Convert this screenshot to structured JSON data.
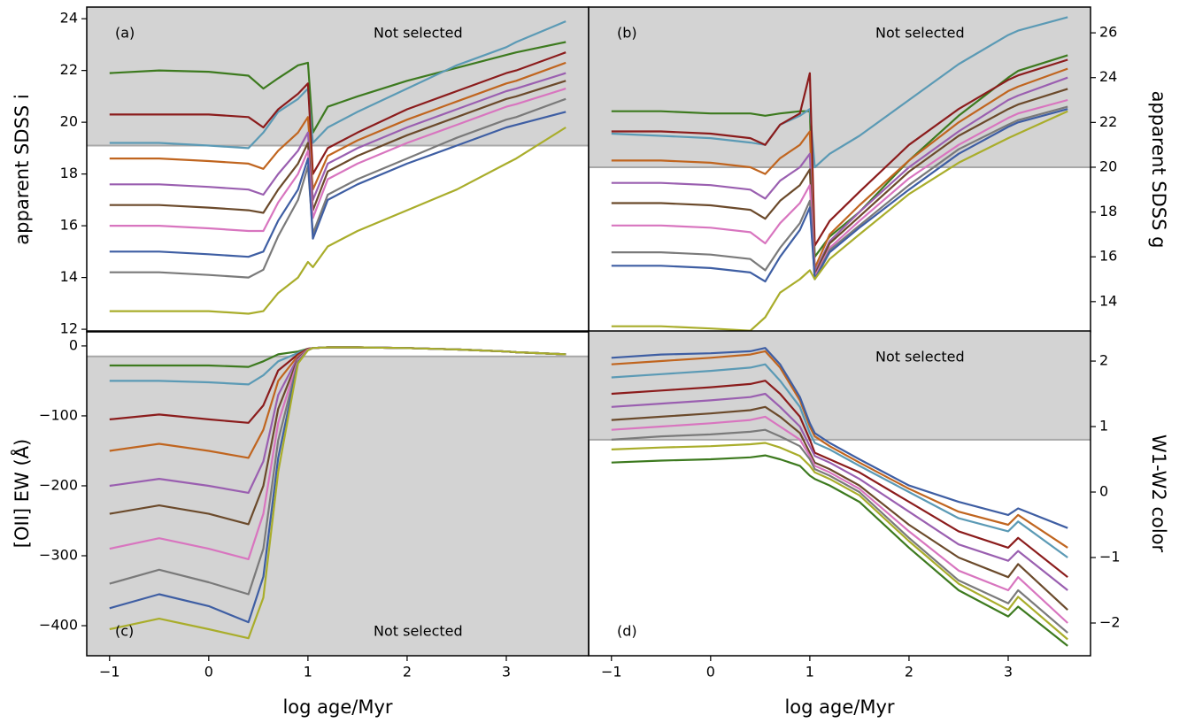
{
  "chart_data": [
    {
      "type": "line",
      "panel_label": "(a)",
      "label_corner": "upper left",
      "annotation": "Not selected",
      "ylabel": "apparent SDSS i",
      "yaxis_side": "left",
      "shade": {
        "threshold": 19.1,
        "side": "above",
        "color": "#d3d3d3"
      },
      "xlim": [
        -1.23,
        3.83
      ],
      "ylim": [
        11.9,
        24.45
      ],
      "yticks": [
        12,
        14,
        16,
        18,
        20,
        22,
        24
      ],
      "x": [
        -1,
        -0.5,
        0,
        0.4,
        0.55,
        0.7,
        0.9,
        1.0,
        1.05,
        1.2,
        1.5,
        2,
        2.5,
        3,
        3.1,
        3.6
      ],
      "series": [
        {
          "color": "#3d7a1f",
          "values": [
            21.9,
            22.0,
            21.95,
            21.8,
            21.3,
            21.7,
            22.2,
            22.3,
            19.6,
            20.6,
            21.0,
            21.6,
            22.1,
            22.6,
            22.7,
            23.1
          ]
        },
        {
          "color": "#5b9ab5",
          "values": [
            19.2,
            19.2,
            19.1,
            19.0,
            19.6,
            20.4,
            20.9,
            21.3,
            19.2,
            19.8,
            20.4,
            21.3,
            22.2,
            22.9,
            23.1,
            23.9
          ]
        },
        {
          "color": "#8b1c1c",
          "values": [
            20.3,
            20.3,
            20.3,
            20.2,
            19.8,
            20.5,
            21.1,
            21.5,
            18.0,
            19.0,
            19.6,
            20.5,
            21.2,
            21.9,
            22.0,
            22.7
          ]
        },
        {
          "color": "#c0651f",
          "values": [
            18.6,
            18.6,
            18.5,
            18.4,
            18.2,
            18.9,
            19.6,
            20.2,
            17.4,
            18.7,
            19.3,
            20.1,
            20.8,
            21.5,
            21.6,
            22.3
          ]
        },
        {
          "color": "#9a5fb0",
          "values": [
            17.6,
            17.6,
            17.5,
            17.4,
            17.2,
            18.0,
            18.9,
            19.6,
            17.0,
            18.4,
            19.0,
            19.8,
            20.5,
            21.2,
            21.3,
            21.9
          ]
        },
        {
          "color": "#6b4a2b",
          "values": [
            16.8,
            16.8,
            16.7,
            16.6,
            16.5,
            17.4,
            18.4,
            19.2,
            16.6,
            18.1,
            18.7,
            19.5,
            20.2,
            20.9,
            21.0,
            21.6
          ]
        },
        {
          "color": "#d875bf",
          "values": [
            16.0,
            16.0,
            15.9,
            15.8,
            15.8,
            16.9,
            18.0,
            18.9,
            16.3,
            17.8,
            18.4,
            19.2,
            19.9,
            20.6,
            20.7,
            21.3
          ]
        },
        {
          "color": "#7a7a7a",
          "values": [
            14.2,
            14.2,
            14.1,
            14.0,
            14.3,
            15.6,
            17.0,
            18.3,
            15.7,
            17.2,
            17.8,
            18.6,
            19.4,
            20.1,
            20.2,
            20.9
          ]
        },
        {
          "color": "#3e5ea3",
          "values": [
            15.0,
            15.0,
            14.9,
            14.8,
            15.0,
            16.2,
            17.4,
            18.6,
            15.5,
            17.0,
            17.6,
            18.4,
            19.1,
            19.8,
            19.9,
            20.4
          ]
        },
        {
          "color": "#a9ad2b",
          "values": [
            12.7,
            12.7,
            12.7,
            12.6,
            12.7,
            13.4,
            14.0,
            14.6,
            14.4,
            15.2,
            15.8,
            16.6,
            17.4,
            18.4,
            18.6,
            19.8
          ]
        }
      ]
    },
    {
      "type": "line",
      "panel_label": "(b)",
      "label_corner": "upper left",
      "annotation": "Not selected",
      "ylabel": "apparent SDSS g",
      "yaxis_side": "right",
      "shade": {
        "threshold": 20,
        "side": "above",
        "color": "#d3d3d3"
      },
      "xlim": [
        -1.23,
        3.83
      ],
      "ylim": [
        12.65,
        27.15
      ],
      "yticks": [
        14,
        16,
        18,
        20,
        22,
        24,
        26
      ],
      "x": [
        -1,
        -0.5,
        0,
        0.4,
        0.55,
        0.7,
        0.9,
        1.0,
        1.05,
        1.2,
        1.5,
        2,
        2.5,
        3,
        3.1,
        3.6
      ],
      "series": [
        {
          "color": "#3d7a1f",
          "values": [
            22.5,
            22.5,
            22.4,
            22.4,
            22.3,
            22.4,
            22.5,
            22.5,
            16.0,
            16.9,
            18.0,
            20.3,
            22.3,
            24.0,
            24.3,
            25.0
          ]
        },
        {
          "color": "#5b9ab5",
          "values": [
            21.5,
            21.4,
            21.3,
            21.1,
            21.0,
            21.9,
            22.3,
            22.6,
            20.0,
            20.6,
            21.4,
            23.0,
            24.6,
            25.9,
            26.1,
            26.7
          ]
        },
        {
          "color": "#8b1c1c",
          "values": [
            21.6,
            21.6,
            21.5,
            21.3,
            21.0,
            21.9,
            22.4,
            24.2,
            16.5,
            17.6,
            18.9,
            21.0,
            22.6,
            23.9,
            24.1,
            24.8
          ]
        },
        {
          "color": "#c0651f",
          "values": [
            20.3,
            20.3,
            20.2,
            20.0,
            19.7,
            20.4,
            21.0,
            21.6,
            15.5,
            17.0,
            18.3,
            20.3,
            22.0,
            23.4,
            23.6,
            24.4
          ]
        },
        {
          "color": "#9a5fb0",
          "values": [
            19.3,
            19.3,
            19.2,
            19.0,
            18.6,
            19.4,
            20.0,
            20.6,
            15.3,
            16.7,
            18.0,
            20.0,
            21.6,
            23.0,
            23.2,
            24.0
          ]
        },
        {
          "color": "#6b4a2b",
          "values": [
            18.4,
            18.4,
            18.3,
            18.1,
            17.7,
            18.5,
            19.2,
            19.9,
            15.2,
            16.6,
            17.8,
            19.8,
            21.4,
            22.6,
            22.8,
            23.5
          ]
        },
        {
          "color": "#d875bf",
          "values": [
            17.4,
            17.4,
            17.3,
            17.1,
            16.6,
            17.5,
            18.4,
            19.2,
            15.1,
            16.4,
            17.6,
            19.5,
            21.0,
            22.2,
            22.4,
            23.0
          ]
        },
        {
          "color": "#7a7a7a",
          "values": [
            16.2,
            16.2,
            16.1,
            15.9,
            15.4,
            16.4,
            17.5,
            18.5,
            15.0,
            16.3,
            17.4,
            19.2,
            20.8,
            21.9,
            22.1,
            22.7
          ]
        },
        {
          "color": "#3e5ea3",
          "values": [
            15.6,
            15.6,
            15.5,
            15.3,
            14.9,
            16.0,
            17.2,
            18.2,
            15.0,
            16.2,
            17.3,
            19.0,
            20.6,
            21.8,
            22.0,
            22.6
          ]
        },
        {
          "color": "#a9ad2b",
          "values": [
            12.9,
            12.9,
            12.8,
            12.7,
            13.3,
            14.4,
            15.0,
            15.4,
            15.0,
            15.9,
            17.0,
            18.8,
            20.2,
            21.3,
            21.5,
            22.5
          ]
        }
      ]
    },
    {
      "type": "line",
      "panel_label": "(c)",
      "label_corner": "lower left",
      "annotation": "Not selected",
      "ylabel": "[OII] EW (Å)",
      "yaxis_side": "left",
      "shade": {
        "threshold": -15,
        "side": "below",
        "color": "#d3d3d3"
      },
      "xlim": [
        -1.23,
        3.83
      ],
      "ylim": [
        -443,
        21.4
      ],
      "yticks": [
        {
          "value": -400,
          "label": "−400"
        },
        {
          "value": -300,
          "label": "−300"
        },
        {
          "value": -200,
          "label": "−200"
        },
        {
          "value": -100,
          "label": "−100"
        },
        0
      ],
      "xticks": [
        {
          "value": -1,
          "label": "−1"
        },
        0,
        1,
        2,
        3
      ],
      "xlabel": "log age/Myr",
      "x": [
        -1,
        -0.5,
        0,
        0.4,
        0.55,
        0.7,
        0.9,
        1.0,
        1.05,
        1.2,
        1.5,
        2,
        2.5,
        3,
        3.1,
        3.6
      ],
      "series": [
        {
          "color": "#3d7a1f",
          "values": [
            -28,
            -28,
            -28,
            -30,
            -22,
            -12,
            -8,
            -4,
            -3,
            -2,
            -2,
            -3,
            -5,
            -8,
            -9,
            -12
          ]
        },
        {
          "color": "#5b9ab5",
          "values": [
            -50,
            -50,
            -52,
            -55,
            -42,
            -22,
            -10,
            -4,
            -3,
            -2,
            -2,
            -3,
            -5,
            -8,
            -9,
            -12
          ]
        },
        {
          "color": "#8b1c1c",
          "values": [
            -105,
            -98,
            -105,
            -110,
            -85,
            -35,
            -12,
            -4,
            -3,
            -2,
            -2,
            -3,
            -5,
            -8,
            -9,
            -12
          ]
        },
        {
          "color": "#c0651f",
          "values": [
            -150,
            -140,
            -150,
            -160,
            -120,
            -50,
            -14,
            -5,
            -3,
            -2,
            -2,
            -3,
            -5,
            -8,
            -9,
            -12
          ]
        },
        {
          "color": "#9a5fb0",
          "values": [
            -200,
            -190,
            -200,
            -210,
            -165,
            -70,
            -16,
            -5,
            -3,
            -2,
            -2,
            -3,
            -5,
            -8,
            -9,
            -12
          ]
        },
        {
          "color": "#6b4a2b",
          "values": [
            -240,
            -228,
            -240,
            -255,
            -200,
            -90,
            -18,
            -5,
            -3,
            -2,
            -2,
            -3,
            -5,
            -8,
            -9,
            -12
          ]
        },
        {
          "color": "#d875bf",
          "values": [
            -290,
            -275,
            -290,
            -305,
            -240,
            -110,
            -20,
            -5,
            -3,
            -2,
            -2,
            -3,
            -5,
            -8,
            -9,
            -12
          ]
        },
        {
          "color": "#7a7a7a",
          "values": [
            -340,
            -320,
            -338,
            -355,
            -290,
            -135,
            -22,
            -6,
            -3,
            -2,
            -2,
            -3,
            -5,
            -8,
            -9,
            -12
          ]
        },
        {
          "color": "#3e5ea3",
          "values": [
            -375,
            -355,
            -372,
            -395,
            -330,
            -160,
            -24,
            -6,
            -3,
            -2,
            -2,
            -3,
            -5,
            -8,
            -9,
            -12
          ]
        },
        {
          "color": "#a9ad2b",
          "values": [
            -405,
            -390,
            -405,
            -418,
            -360,
            -180,
            -25,
            -6,
            -3,
            -2,
            -2,
            -3,
            -5,
            -8,
            -9,
            -12
          ]
        }
      ]
    },
    {
      "type": "line",
      "panel_label": "(d)",
      "label_corner": "lower left",
      "annotation": "Not selected",
      "ylabel": "W1-W2 color",
      "yaxis_side": "right",
      "shade": {
        "threshold": 0.8,
        "side": "above",
        "color": "#d3d3d3"
      },
      "xlim": [
        -1.23,
        3.83
      ],
      "ylim": [
        -2.5,
        2.46
      ],
      "yticks": [
        {
          "value": -2,
          "label": "−2"
        },
        {
          "value": -1,
          "label": "−1"
        },
        0,
        1,
        2
      ],
      "xticks": [
        {
          "value": -1,
          "label": "−1"
        },
        0,
        1,
        2,
        3
      ],
      "xlabel": "log age/Myr",
      "x": [
        -1,
        -0.5,
        0,
        0.4,
        0.55,
        0.7,
        0.9,
        1.0,
        1.05,
        1.2,
        1.5,
        2,
        2.5,
        3,
        3.1,
        3.6
      ],
      "series": [
        {
          "color": "#c0651f",
          "values": [
            1.95,
            2.0,
            2.05,
            2.1,
            2.15,
            1.9,
            1.4,
            1.0,
            0.85,
            0.7,
            0.45,
            0.05,
            -0.3,
            -0.5,
            -0.35,
            -0.85
          ]
        },
        {
          "color": "#5b9ab5",
          "values": [
            1.75,
            1.8,
            1.85,
            1.9,
            1.95,
            1.7,
            1.3,
            0.9,
            0.75,
            0.65,
            0.4,
            0.0,
            -0.4,
            -0.6,
            -0.45,
            -1.0
          ]
        },
        {
          "color": "#8b1c1c",
          "values": [
            1.5,
            1.55,
            1.6,
            1.65,
            1.7,
            1.5,
            1.15,
            0.8,
            0.6,
            0.5,
            0.3,
            -0.15,
            -0.6,
            -0.85,
            -0.7,
            -1.3
          ]
        },
        {
          "color": "#9a5fb0",
          "values": [
            1.3,
            1.35,
            1.4,
            1.45,
            1.5,
            1.3,
            1.0,
            0.7,
            0.55,
            0.45,
            0.2,
            -0.3,
            -0.8,
            -1.05,
            -0.9,
            -1.5
          ]
        },
        {
          "color": "#6b4a2b",
          "values": [
            1.1,
            1.15,
            1.2,
            1.25,
            1.3,
            1.15,
            0.9,
            0.6,
            0.45,
            0.35,
            0.1,
            -0.5,
            -1.0,
            -1.3,
            -1.1,
            -1.8
          ]
        },
        {
          "color": "#d875bf",
          "values": [
            0.95,
            1.0,
            1.05,
            1.1,
            1.15,
            1.0,
            0.8,
            0.55,
            0.4,
            0.3,
            0.05,
            -0.6,
            -1.2,
            -1.5,
            -1.3,
            -2.0
          ]
        },
        {
          "color": "#7a7a7a",
          "values": [
            0.8,
            0.85,
            0.88,
            0.92,
            0.95,
            0.85,
            0.7,
            0.5,
            0.35,
            0.25,
            0.0,
            -0.7,
            -1.35,
            -1.7,
            -1.5,
            -2.15
          ]
        },
        {
          "color": "#3d7a1f",
          "values": [
            0.45,
            0.48,
            0.5,
            0.53,
            0.56,
            0.5,
            0.4,
            0.25,
            0.2,
            0.1,
            -0.15,
            -0.85,
            -1.5,
            -1.9,
            -1.75,
            -2.35
          ]
        },
        {
          "color": "#3e5ea3",
          "values": [
            2.05,
            2.1,
            2.12,
            2.15,
            2.2,
            1.95,
            1.45,
            1.05,
            0.9,
            0.75,
            0.5,
            0.1,
            -0.15,
            -0.35,
            -0.25,
            -0.55
          ]
        },
        {
          "color": "#a9ad2b",
          "values": [
            0.65,
            0.68,
            0.7,
            0.73,
            0.75,
            0.68,
            0.55,
            0.4,
            0.3,
            0.2,
            -0.05,
            -0.75,
            -1.4,
            -1.8,
            -1.6,
            -2.25
          ]
        }
      ]
    }
  ]
}
